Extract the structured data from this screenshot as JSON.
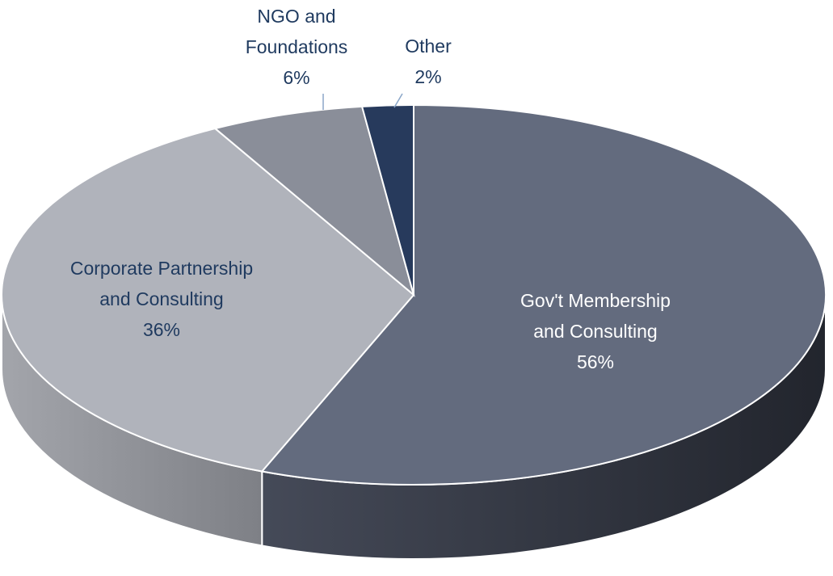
{
  "chart_data": {
    "type": "pie3d",
    "categories": [
      "Gov't Membership and Consulting",
      "Corporate Partnership and Consulting",
      "NGO and Foundations",
      "Other"
    ],
    "values": [
      56,
      36,
      6,
      2
    ],
    "value_labels": [
      "56%",
      "36%",
      "6%",
      "2%"
    ],
    "colors": [
      "#636b7e",
      "#b0b3bb",
      "#8a8e99",
      "#273a5c"
    ]
  }
}
